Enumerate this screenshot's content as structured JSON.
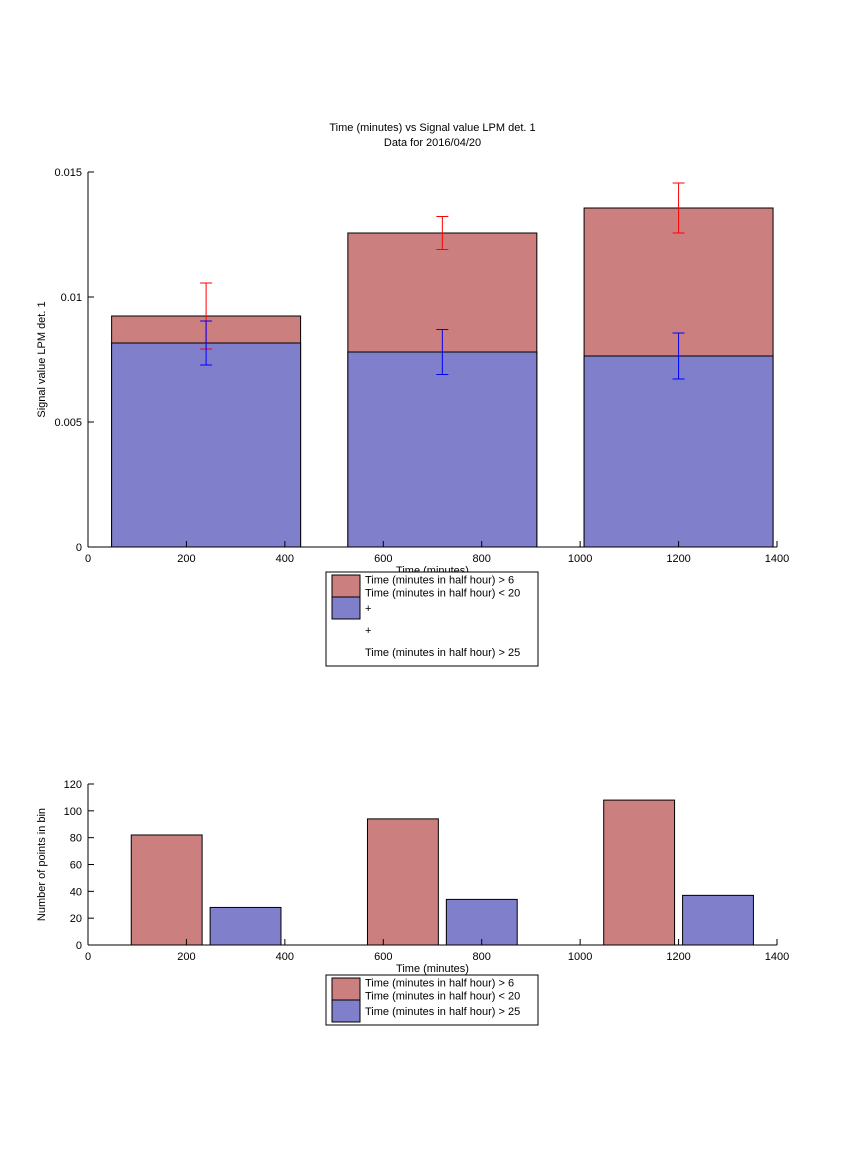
{
  "chart_data": [
    {
      "type": "bar",
      "barmode": "overlay",
      "title": "Time (minutes) vs Signal value LPM det. 1",
      "subtitle": "Data for 2016/04/20",
      "x_label": "Time (minutes)",
      "y_label": "Signal value LPM det. 1",
      "x": [
        240,
        720,
        1200
      ],
      "series": [
        {
          "name": "Time (minutes in half hour) > 6\nTime (minutes in half hour) < 20",
          "color": "#cc7f7f",
          "values": [
            0.00924,
            0.01256,
            0.01356
          ]
        },
        {
          "name": "Time (minutes in half hour) > 25",
          "color": "#7f7fcc",
          "values": [
            0.00816,
            0.0078,
            0.00764
          ]
        }
      ],
      "errorbar_series": [
        {
          "name": "Time (minutes in half hour) > 6\nTime (minutes in half hour) < 20",
          "color": "#ff0000",
          "values": [
            0.00924,
            0.01256,
            0.01356
          ],
          "errors": [
            0.00132,
            0.00066,
            0.001
          ]
        },
        {
          "name": "Time (minutes in half hour) > 25",
          "color": "#0000ff",
          "values": [
            0.00816,
            0.0078,
            0.00764
          ],
          "errors": [
            0.00088,
            0.0009,
            0.00092
          ]
        }
      ],
      "xlim": [
        0,
        1400
      ],
      "xticks": [
        0,
        200,
        400,
        600,
        800,
        1000,
        1200,
        1400
      ],
      "ylim": [
        0,
        0.015
      ],
      "yticks": [
        0,
        0.005,
        0.01,
        0.015
      ]
    },
    {
      "type": "bar",
      "barmode": "group",
      "x_label": "Time (minutes)",
      "y_label": "Number of points in bin",
      "x": [
        240,
        720,
        1200
      ],
      "series": [
        {
          "name": "Time (minutes in half hour) > 6\nTime (minutes in half hour) < 20",
          "color": "#cc7f7f",
          "values": [
            82,
            94,
            108
          ]
        },
        {
          "name": "Time (minutes in half hour) > 25",
          "color": "#7f7fcc",
          "values": [
            28,
            34,
            37
          ]
        }
      ],
      "xlim": [
        0,
        1400
      ],
      "xticks": [
        0,
        200,
        400,
        600,
        800,
        1000,
        1200,
        1400
      ],
      "ylim": [
        0,
        120
      ],
      "yticks": [
        0,
        20,
        40,
        60,
        80,
        100,
        120
      ]
    }
  ]
}
